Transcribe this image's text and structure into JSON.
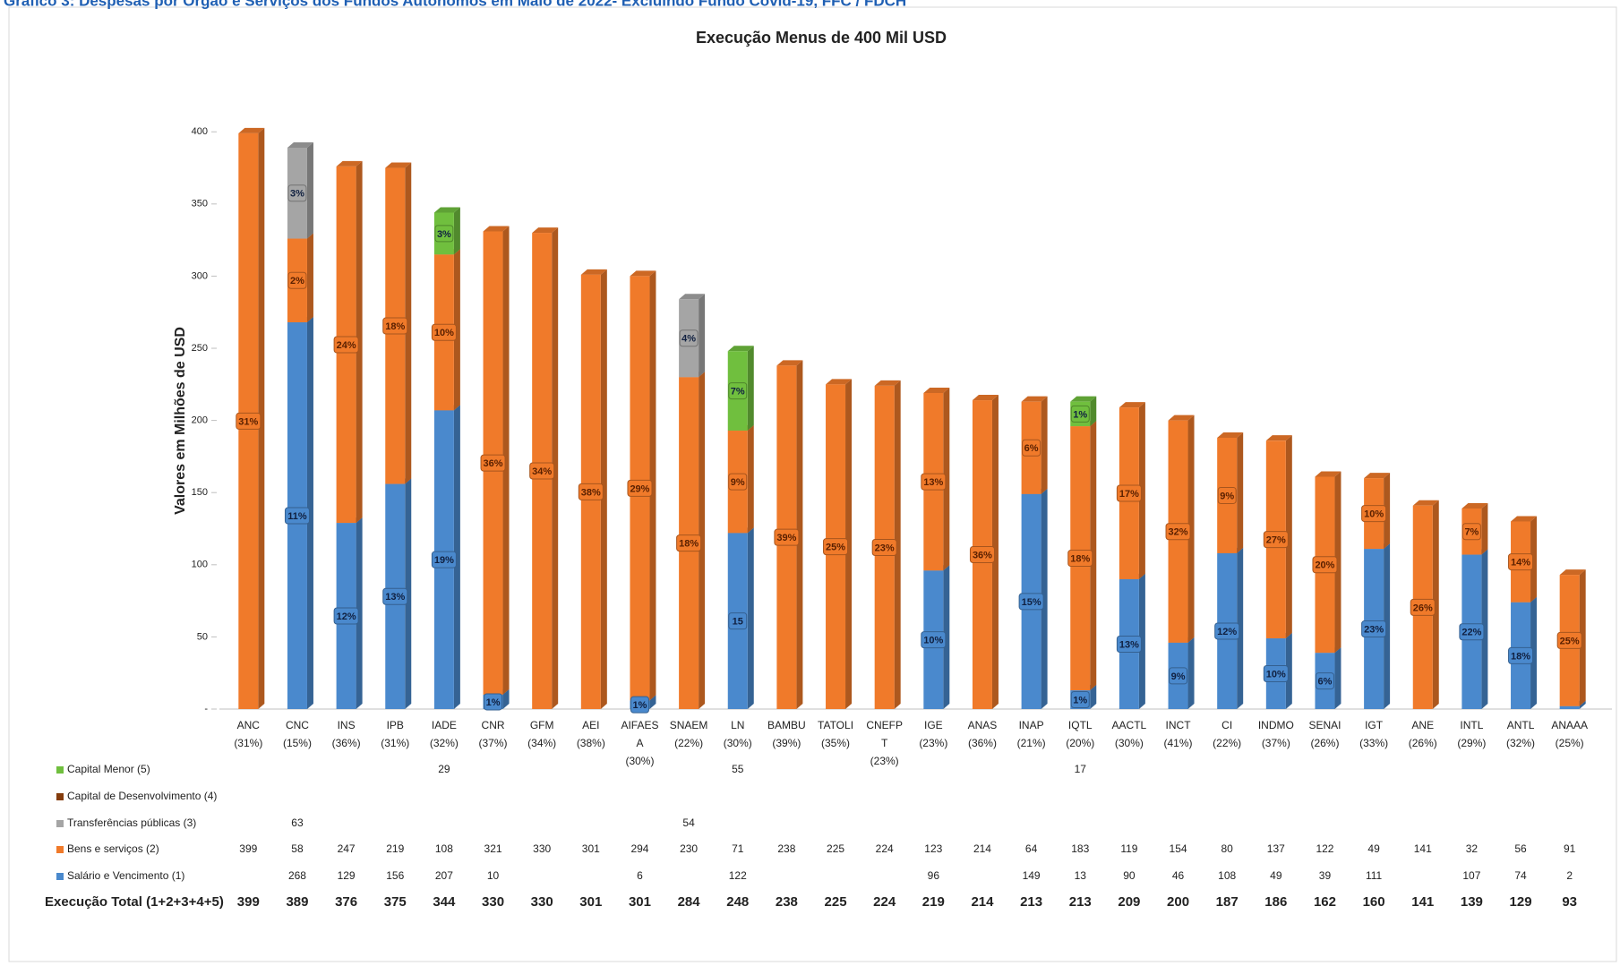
{
  "header": {
    "title": "Gráfico 3: Despesas por Órgão e Serviços dos Fundos Autónomos em Maio de 2022- Excluindo Fundo Covid-19, FFC / FDCH"
  },
  "chart_data": {
    "type": "stacked_bar",
    "title": "Execução Menus de 400 Mil USD",
    "y_label": "Valores em Milhões de USD",
    "categories": [
      "ANC (31%)",
      "CNC (15%)",
      "INS (36%)",
      "IPB (31%)",
      "IADE (32%)",
      "CNR (37%)",
      "GFM (34%)",
      "AEI (38%)",
      "AIFAES A (30%)",
      "SNAEM (22%)",
      "LN (30%)",
      "BAMBU (39%)",
      "TATOLI (35%)",
      "CNEFP T (23%)",
      "IGE (23%)",
      "ANAS (36%)",
      "INAP (21%)",
      "IQTL (20%)",
      "AACTL (30%)",
      "INCT (41%)",
      "CI (22%)",
      "INDMO (37%)",
      "SENAI (26%)",
      "IGT (33%)",
      "ANE (26%)",
      "INTL (29%)",
      "ANTL (32%)",
      "ANAAA (25%)"
    ],
    "series": [
      {
        "name": "Capital Menor (5)",
        "color": "#70bf3e",
        "values": [
          null,
          null,
          null,
          null,
          29,
          null,
          null,
          null,
          null,
          null,
          55,
          null,
          null,
          null,
          null,
          null,
          null,
          17,
          null,
          null,
          null,
          null,
          null,
          null,
          null,
          null,
          null,
          null
        ],
        "rate_labels": [
          null,
          null,
          null,
          null,
          "3%",
          null,
          null,
          null,
          null,
          null,
          "7%",
          null,
          null,
          null,
          null,
          null,
          null,
          "1%",
          null,
          null,
          null,
          null,
          null,
          null,
          null,
          null,
          null,
          null
        ]
      },
      {
        "name": "Capital de Desenvolvimento (4)",
        "color": "#843c0c",
        "values": [
          null,
          null,
          null,
          null,
          null,
          null,
          null,
          null,
          null,
          null,
          null,
          null,
          null,
          null,
          null,
          null,
          null,
          null,
          null,
          null,
          null,
          null,
          null,
          null,
          null,
          null,
          null,
          null
        ],
        "rate_labels": [
          null,
          null,
          null,
          null,
          null,
          null,
          null,
          null,
          null,
          null,
          null,
          null,
          null,
          null,
          null,
          null,
          null,
          null,
          null,
          null,
          null,
          null,
          null,
          null,
          null,
          null,
          null,
          null
        ]
      },
      {
        "name": "Transferências públicas (3)",
        "color": "#a5a5a5",
        "values": [
          null,
          63,
          null,
          null,
          null,
          null,
          null,
          null,
          null,
          54,
          null,
          null,
          null,
          null,
          null,
          null,
          null,
          null,
          null,
          null,
          null,
          null,
          null,
          null,
          null,
          null,
          null,
          null
        ],
        "rate_labels": [
          null,
          "3%",
          null,
          null,
          null,
          null,
          null,
          null,
          null,
          "4%",
          null,
          null,
          null,
          null,
          null,
          null,
          null,
          null,
          null,
          null,
          null,
          null,
          null,
          null,
          null,
          null,
          null,
          null
        ]
      },
      {
        "name": "Bens e serviços (2)",
        "color": "#f07a2a",
        "values": [
          399,
          58,
          247,
          219,
          108,
          321,
          330,
          301,
          294,
          230,
          71,
          238,
          225,
          224,
          123,
          214,
          64,
          183,
          119,
          154,
          80,
          137,
          122,
          49,
          141,
          32,
          56,
          91
        ],
        "rate_labels": [
          "31%",
          "2%",
          "24%",
          "18%",
          "10%",
          "36%",
          "34%",
          "38%",
          "29%",
          "18%",
          "9%",
          "39%",
          "25%",
          "23%",
          "13%",
          "36%",
          "6%",
          "18%",
          "17%",
          "32%",
          "9%",
          "27%",
          "20%",
          "10%",
          "26%",
          "7%",
          "14%",
          "25%"
        ]
      },
      {
        "name": "Salário e Vencimento (1)",
        "color": "#4a89cd",
        "values": [
          null,
          268,
          129,
          156,
          207,
          10,
          null,
          null,
          6,
          null,
          122,
          null,
          null,
          null,
          96,
          null,
          149,
          13,
          90,
          46,
          108,
          49,
          39,
          111,
          null,
          107,
          74,
          2
        ],
        "rate_labels": [
          null,
          "11%",
          "12%",
          "13%",
          "19%",
          "1%",
          null,
          null,
          "1%",
          null,
          "15",
          null,
          null,
          null,
          "10%",
          null,
          "15%",
          "1%",
          "13%",
          "9%",
          "12%",
          "10%",
          "6%",
          "23%",
          null,
          "22%",
          "18%",
          null
        ]
      }
    ],
    "total_label": "Execução Total (1+2+3+4+5)",
    "totals": [
      399,
      389,
      376,
      375,
      344,
      330,
      330,
      301,
      301,
      284,
      248,
      238,
      225,
      224,
      219,
      214,
      213,
      213,
      209,
      200,
      187,
      186,
      162,
      160,
      141,
      139,
      129,
      93
    ],
    "ylim": [
      0,
      420
    ],
    "yticks": [
      {
        "value": 0,
        "label": "-"
      },
      50,
      100,
      150,
      200,
      250,
      300,
      350,
      400
    ]
  }
}
